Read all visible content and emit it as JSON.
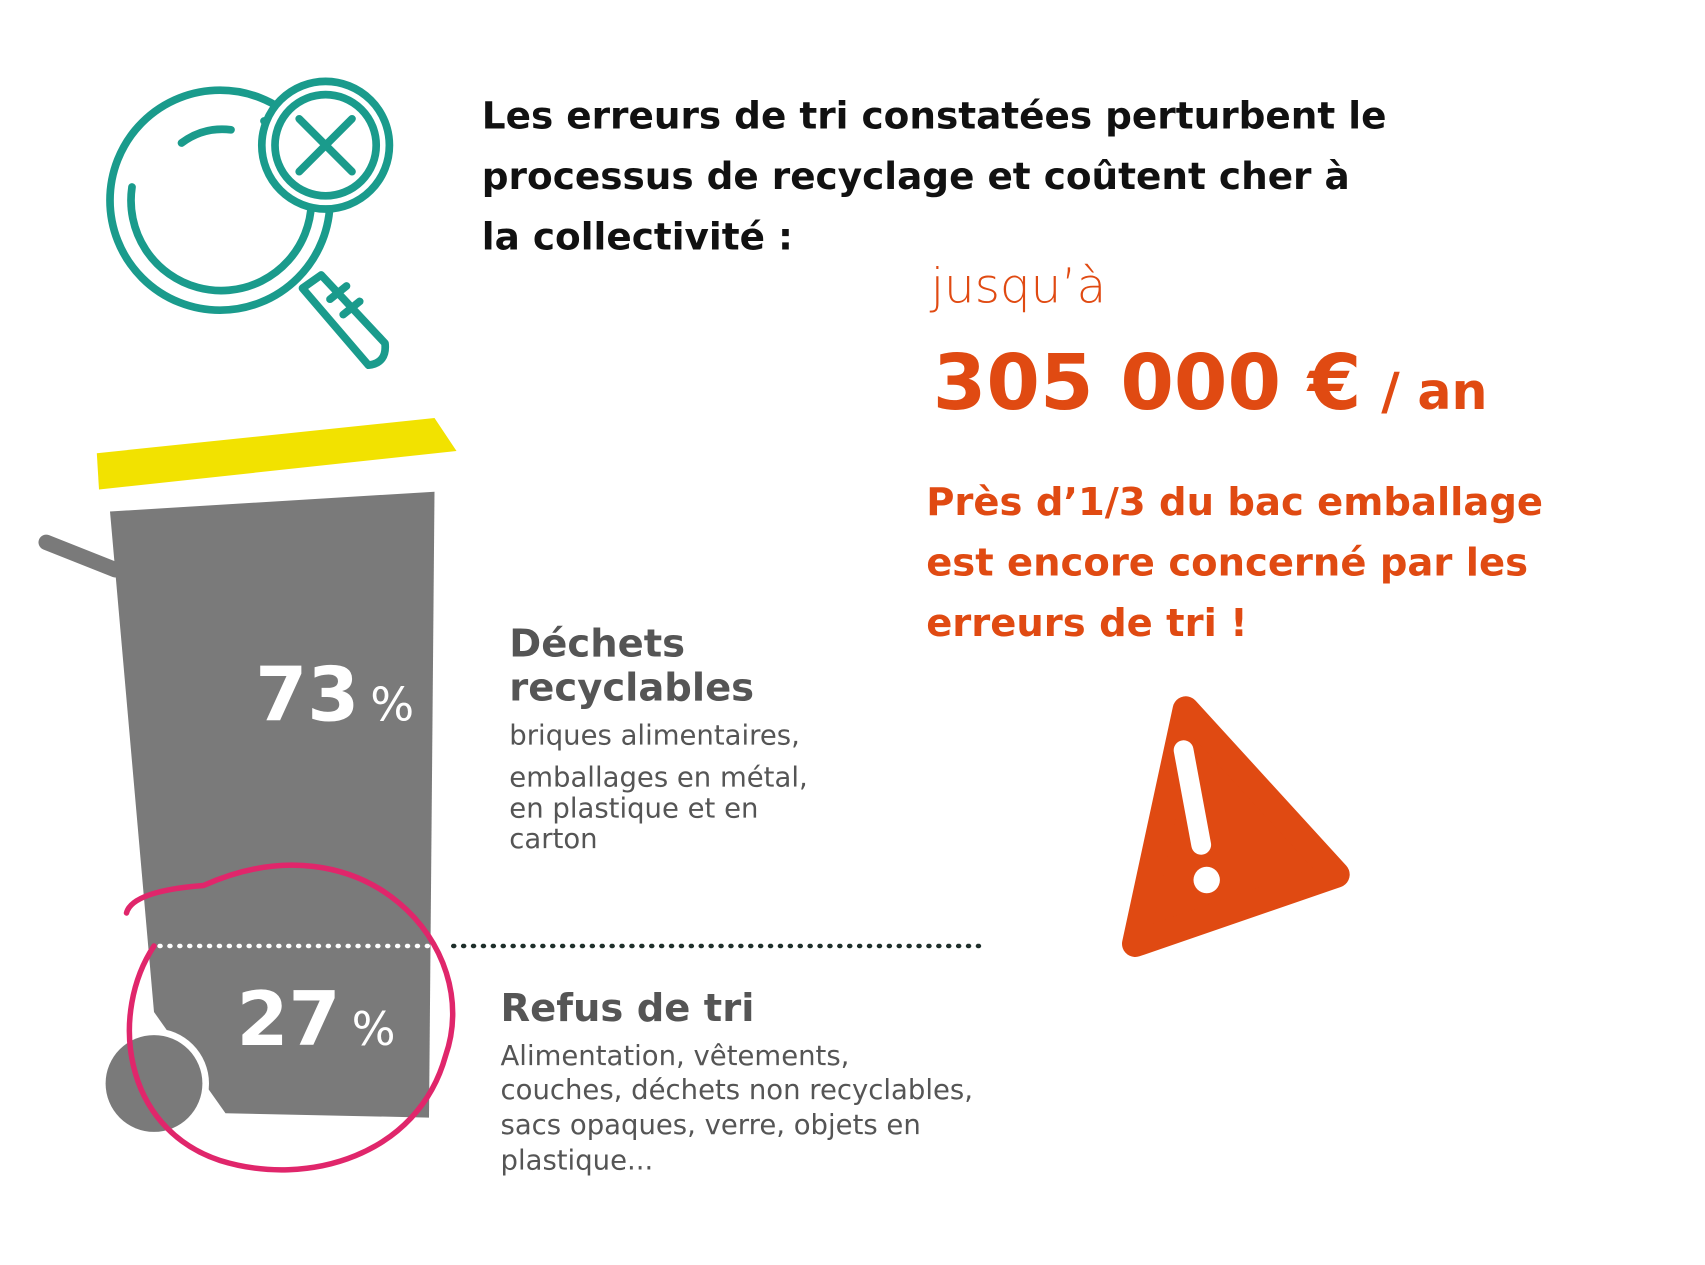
{
  "header": {
    "lines": [
      "Les erreurs de tri constatées perturbent le",
      "processus de recyclage et coûtent cher à",
      "la collectivité :"
    ]
  },
  "cost": {
    "prefix": "jusqu’à",
    "amount": "305 000 €",
    "unit": "/ an"
  },
  "warning": {
    "lines": [
      "Près d’1/3 du bac emballage",
      "est encore concerné par les",
      "erreurs de tri !"
    ]
  },
  "bin": {
    "recyclable": {
      "share": 73,
      "unit": "%",
      "title": [
        "Déchets",
        "recyclables"
      ],
      "description": [
        "briques alimentaires,",
        "emballages en métal,",
        "en plastique et en",
        "carton"
      ]
    },
    "rejected": {
      "share": 27,
      "unit": "%",
      "title": [
        "Refus de tri"
      ],
      "description": [
        "Alimentation, vêtements,",
        "couches, déchets non recyclables,",
        "sacs opaques, verre, objets en",
        "plastique..."
      ]
    }
  }
}
